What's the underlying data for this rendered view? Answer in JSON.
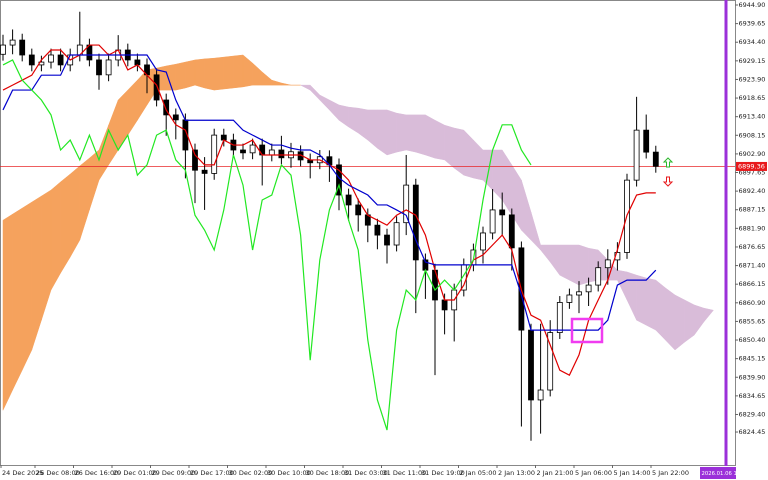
{
  "chart_data": {
    "type": "candlestick",
    "ylim": [
      6815.15,
      6946.31
    ],
    "yticks": [
      {
        "value": 6944.9,
        "label": "6944.90"
      },
      {
        "value": 6939.65,
        "label": "6939.65"
      },
      {
        "value": 6934.4,
        "label": "6934.40"
      },
      {
        "value": 6929.15,
        "label": "6929.15"
      },
      {
        "value": 6923.9,
        "label": "6923.90"
      },
      {
        "value": 6918.65,
        "label": "6918.65"
      },
      {
        "value": 6913.4,
        "label": "6913.40"
      },
      {
        "value": 6908.15,
        "label": "6908.15"
      },
      {
        "value": 6902.9,
        "label": "6902.90"
      },
      {
        "value": 6897.65,
        "label": "6897.65"
      },
      {
        "value": 6892.4,
        "label": "6892.40"
      },
      {
        "value": 6887.15,
        "label": "6887.15"
      },
      {
        "value": 6881.9,
        "label": "6881.90"
      },
      {
        "value": 6876.65,
        "label": "6876.65"
      },
      {
        "value": 6871.4,
        "label": "6871.40"
      },
      {
        "value": 6866.15,
        "label": "6866.15"
      },
      {
        "value": 6860.9,
        "label": "6860.90"
      },
      {
        "value": 6855.65,
        "label": "6855.65"
      },
      {
        "value": 6850.4,
        "label": "6850.40"
      },
      {
        "value": 6845.15,
        "label": "6845.15"
      },
      {
        "value": 6839.9,
        "label": "6839.90"
      },
      {
        "value": 6834.65,
        "label": "6834.65"
      },
      {
        "value": 6829.4,
        "label": "6829.40"
      },
      {
        "value": 6824.45,
        "label": "6824.45"
      }
    ],
    "x_labels": [
      "24 Dec 2025",
      "26 Dec 08:00",
      "26 Dec 16:00",
      "29 Dec 01:00",
      "29 Dec 09:00",
      "29 Dec 17:00",
      "30 Dec 02:00",
      "30 Dec 10:00",
      "30 Dec 18:00",
      "31 Dec 03:00",
      "31 Dec 11:00",
      "31 Dec 19:00",
      "2 Jan 05:00",
      "2 Jan 13:00",
      "2 Jan 21:00",
      "5 Jan 06:00",
      "5 Jan 14:00",
      "5 Jan 22:00"
    ],
    "current_price": 6899.36,
    "current_price_color": "#e8191c",
    "time_marker": "2026.01.06 13:00",
    "time_marker_color": "#9b30d9",
    "bull_color": "#ffffff",
    "bear_color": "#000000",
    "open": [
      6931.0,
      6933.6,
      6935.0,
      6930.8,
      6928.0,
      6928.8,
      6930.8,
      6928.0,
      6930.8,
      6933.6,
      6929.4,
      6925.2,
      6929.4,
      6932.2,
      6929.4,
      6928.0,
      6925.2,
      6918.1,
      6913.9,
      6912.5,
      6904.0,
      6898.3,
      6897.4,
      6908.2,
      6906.8,
      6904.0,
      6903.2,
      6905.4,
      6902.6,
      6904.0,
      6901.8,
      6903.5,
      6901.2,
      6900.4,
      6902.1,
      6899.8,
      6891.3,
      6888.5,
      6885.7,
      6882.8,
      6880.0,
      6877.2,
      6883.5,
      6894.1,
      6873.0,
      6870.1,
      6861.7,
      6858.9,
      6864.5,
      6871.6,
      6875.8,
      6880.6,
      6887.1,
      6885.7,
      6876.4,
      6853.2,
      6833.5,
      6836.3,
      6852.5,
      6861.0,
      6863.1,
      6864.0,
      6865.9,
      6870.8,
      6873.0,
      6875.1,
      6895.5,
      6909.6,
      6903.4
    ],
    "high": [
      6936.5,
      6938.0,
      6936.8,
      6932.6,
      6930.6,
      6932.6,
      6932.6,
      6932.6,
      6943.0,
      6935.4,
      6931.2,
      6931.2,
      6936.4,
      6934.0,
      6931.2,
      6929.8,
      6927.0,
      6919.9,
      6915.7,
      6914.3,
      6905.8,
      6902.0,
      6910.0,
      6910.0,
      6908.6,
      6905.8,
      6907.2,
      6907.2,
      6905.8,
      6908.0,
      6906.0,
      6905.3,
      6903.0,
      6904.0,
      6903.9,
      6901.6,
      6893.1,
      6890.3,
      6887.5,
      6884.6,
      6881.8,
      6885.3,
      6902.6,
      6895.9,
      6874.8,
      6871.9,
      6863.5,
      6866.3,
      6873.4,
      6877.6,
      6882.4,
      6893.0,
      6892.0,
      6887.5,
      6878.2,
      6855.0,
      6855.0,
      6856.0,
      6862.8,
      6864.9,
      6867.0,
      6868.0,
      6872.6,
      6876.0,
      6878.0,
      6897.3,
      6919.0,
      6914.0,
      6905.2
    ],
    "low": [
      6929.2,
      6931.0,
      6929.0,
      6926.2,
      6926.2,
      6927.0,
      6926.2,
      6926.2,
      6929.0,
      6927.6,
      6921.0,
      6923.4,
      6927.6,
      6927.6,
      6926.2,
      6920.0,
      6916.3,
      6908.0,
      6907.0,
      6896.0,
      6889.0,
      6887.1,
      6895.6,
      6905.0,
      6902.2,
      6901.4,
      6901.4,
      6894.0,
      6900.8,
      6900.0,
      6899.0,
      6899.4,
      6896.0,
      6898.6,
      6895.0,
      6887.0,
      6884.0,
      6881.0,
      6878.0,
      6876.0,
      6872.0,
      6875.4,
      6880.0,
      6858.0,
      6862.0,
      6840.5,
      6852.0,
      6850.0,
      6862.7,
      6869.8,
      6872.0,
      6878.8,
      6880.0,
      6870.0,
      6826.0,
      6822.0,
      6824.0,
      6834.5,
      6850.7,
      6859.2,
      6858.0,
      6860.0,
      6864.1,
      6866.0,
      6870.0,
      6873.3,
      6893.7,
      6901.6,
      6897.6
    ],
    "close": [
      6933.6,
      6935.0,
      6930.8,
      6928.0,
      6928.8,
      6930.8,
      6928.0,
      6930.8,
      6933.6,
      6929.4,
      6925.2,
      6929.4,
      6932.2,
      6929.4,
      6928.0,
      6925.2,
      6918.1,
      6913.9,
      6912.5,
      6904.0,
      6898.3,
      6897.4,
      6908.2,
      6906.8,
      6904.0,
      6903.2,
      6905.4,
      6902.6,
      6904.0,
      6901.8,
      6903.5,
      6901.2,
      6900.4,
      6902.1,
      6899.8,
      6891.3,
      6888.5,
      6885.7,
      6882.8,
      6880.0,
      6877.2,
      6883.5,
      6894.1,
      6873.0,
      6870.1,
      6861.7,
      6858.9,
      6864.5,
      6871.6,
      6875.8,
      6880.6,
      6887.1,
      6885.7,
      6876.4,
      6853.2,
      6833.5,
      6836.3,
      6852.5,
      6861.0,
      6863.1,
      6864.0,
      6865.9,
      6870.8,
      6873.0,
      6875.1,
      6895.5,
      6909.6,
      6903.4,
      6899.4
    ],
    "lines": [
      {
        "color": "#e00000",
        "values": [
          6920.9,
          6922.3,
          6923.7,
          6925.1,
          6929.4,
          6932.2,
          6932.2,
          6929.4,
          6930.8,
          6933.6,
          6933.6,
          6930.8,
          6932.2,
          6926.6,
          6928.0,
          6925.1,
          6922.3,
          6915.3,
          6911.1,
          6909.6,
          6902.6,
          6899.8,
          6899.8,
          6906.8,
          6905.4,
          6905.4,
          6906.8,
          6902.6,
          6902.6,
          6902.6,
          6902.6,
          6902.6,
          6901.2,
          6901.2,
          6899.8,
          6898.3,
          6895.5,
          6889.9,
          6885.6,
          6884.2,
          6882.8,
          6885.6,
          6887.1,
          6885.6,
          6880.0,
          6870.1,
          6861.7,
          6861.7,
          6865.9,
          6873.0,
          6874.4,
          6877.2,
          6880.0,
          6875.8,
          6864.5,
          6857.4,
          6856.0,
          6849.0,
          6841.9,
          6840.5,
          6846.2,
          6856.0,
          6861.7,
          6867.3,
          6875.8,
          6885.6,
          6891.3,
          6891.9,
          6891.9
        ]
      },
      {
        "color": "#0000cd",
        "values": [
          6915.3,
          6920.9,
          6920.9,
          6920.9,
          6925.1,
          6925.1,
          6925.1,
          6930.8,
          6930.8,
          6930.8,
          6930.8,
          6930.8,
          6930.8,
          6930.8,
          6930.8,
          6930.8,
          6926.6,
          6926.0,
          6918.1,
          6912.4,
          6912.4,
          6912.4,
          6912.4,
          6912.4,
          6912.4,
          6909.6,
          6908.2,
          6906.8,
          6905.4,
          6905.4,
          6904.5,
          6904.0,
          6904.0,
          6902.6,
          6899.8,
          6896.1,
          6894.1,
          6892.7,
          6891.3,
          6888.5,
          6888.5,
          6887.1,
          6885.6,
          6878.6,
          6872.4,
          6871.6,
          6871.6,
          6871.6,
          6871.6,
          6871.6,
          6871.6,
          6871.6,
          6871.6,
          6871.6,
          6863.1,
          6853.2,
          6853.2,
          6853.2,
          6853.2,
          6853.2,
          6853.2,
          6853.2,
          6853.2,
          6856.0,
          6865.9,
          6867.3,
          6867.3,
          6867.3,
          6870.1
        ]
      },
      {
        "color": "#22e822",
        "values": [
          6928.0,
          6929.4,
          6923.7,
          6920.9,
          6918.1,
          6913.9,
          6904.0,
          6906.8,
          6901.2,
          6908.2,
          6901.2,
          6909.6,
          6904.0,
          6908.2,
          6896.9,
          6899.8,
          6908.2,
          6909.6,
          6901.2,
          6898.3,
          6885.6,
          6881.4,
          6875.8,
          6887.1,
          6902.6,
          6894.1,
          6875.8,
          6889.9,
          6891.3,
          6899.8,
          6896.9,
          6880.0,
          6844.7,
          6873.0,
          6887.1,
          6894.1,
          6884.2,
          6875.8,
          6850.4,
          6833.5,
          6825.0,
          6853.2,
          6864.5,
          6861.7,
          6870.1,
          6864.5,
          6867.3,
          6864.5,
          6868.7,
          6873.0,
          6889.9,
          6904.0,
          6911.1,
          6911.1,
          6904.0,
          6899.8,
          null,
          null,
          null,
          null,
          null,
          null,
          null,
          null,
          null,
          null,
          null,
          null,
          null
        ]
      }
    ],
    "cloud": {
      "a_above_color": "#f5a25d",
      "b_above_color": "#d9bcd9",
      "span_a": [
        6884.2,
        6885.9,
        6887.6,
        6889.3,
        6891.0,
        6892.7,
        6895.0,
        6897.2,
        6899.5,
        6901.7,
        6904.0,
        6911.0,
        6918.1,
        6920.9,
        6923.7,
        6926.6,
        6927.1,
        6927.7,
        6928.2,
        6928.8,
        6929.4,
        6929.7,
        6929.9,
        6930.2,
        6930.5,
        6930.8,
        6928.5,
        6926.0,
        6923.7,
        6922.9,
        6922.3,
        6922.3,
        6920.9,
        6918.1,
        6915.3,
        6912.4,
        6910.5,
        6908.8,
        6906.8,
        6904.5,
        6902.6,
        6903.4,
        6904.0,
        6903.4,
        6902.6,
        6901.7,
        6901.2,
        6898.9,
        6896.9,
        6896.1,
        6895.5,
        6892.7,
        6889.9,
        6885.6,
        6881.4,
        6878.6,
        6875.8,
        6872.4,
        6868.7,
        6867.3,
        6865.9,
        6866.7,
        6867.3,
        6867.3,
        6867.3,
        6861.7,
        6856.0,
        6854.6,
        6853.2,
        6850.4,
        6847.6,
        6849.8,
        6851.8,
        6855.5,
        6858.8
      ],
      "span_b": [
        6830.6,
        6836.3,
        6841.9,
        6847.6,
        6856.0,
        6864.5,
        6869.3,
        6873.8,
        6878.6,
        6887.1,
        6895.5,
        6899.8,
        6904.0,
        6908.2,
        6912.4,
        6916.7,
        6920.9,
        6920.9,
        6920.9,
        6921.5,
        6922.3,
        6921.5,
        6920.9,
        6921.2,
        6921.5,
        6921.8,
        6922.3,
        6922.3,
        6922.3,
        6922.3,
        6922.3,
        6922.3,
        6922.3,
        6919.5,
        6918.1,
        6916.7,
        6916.1,
        6915.8,
        6915.3,
        6915.3,
        6915.3,
        6914.4,
        6913.9,
        6913.9,
        6913.9,
        6912.4,
        6911.0,
        6910.2,
        6909.6,
        6906.8,
        6904.0,
        6904.0,
        6904.0,
        6899.8,
        6895.5,
        6886.5,
        6877.2,
        6877.2,
        6877.2,
        6877.2,
        6877.2,
        6876.3,
        6875.8,
        6873.0,
        6870.1,
        6869.6,
        6868.7,
        6867.9,
        6867.3,
        6865.1,
        6863.1,
        6861.7,
        6860.3,
        6859.4,
        6858.8
      ]
    }
  }
}
